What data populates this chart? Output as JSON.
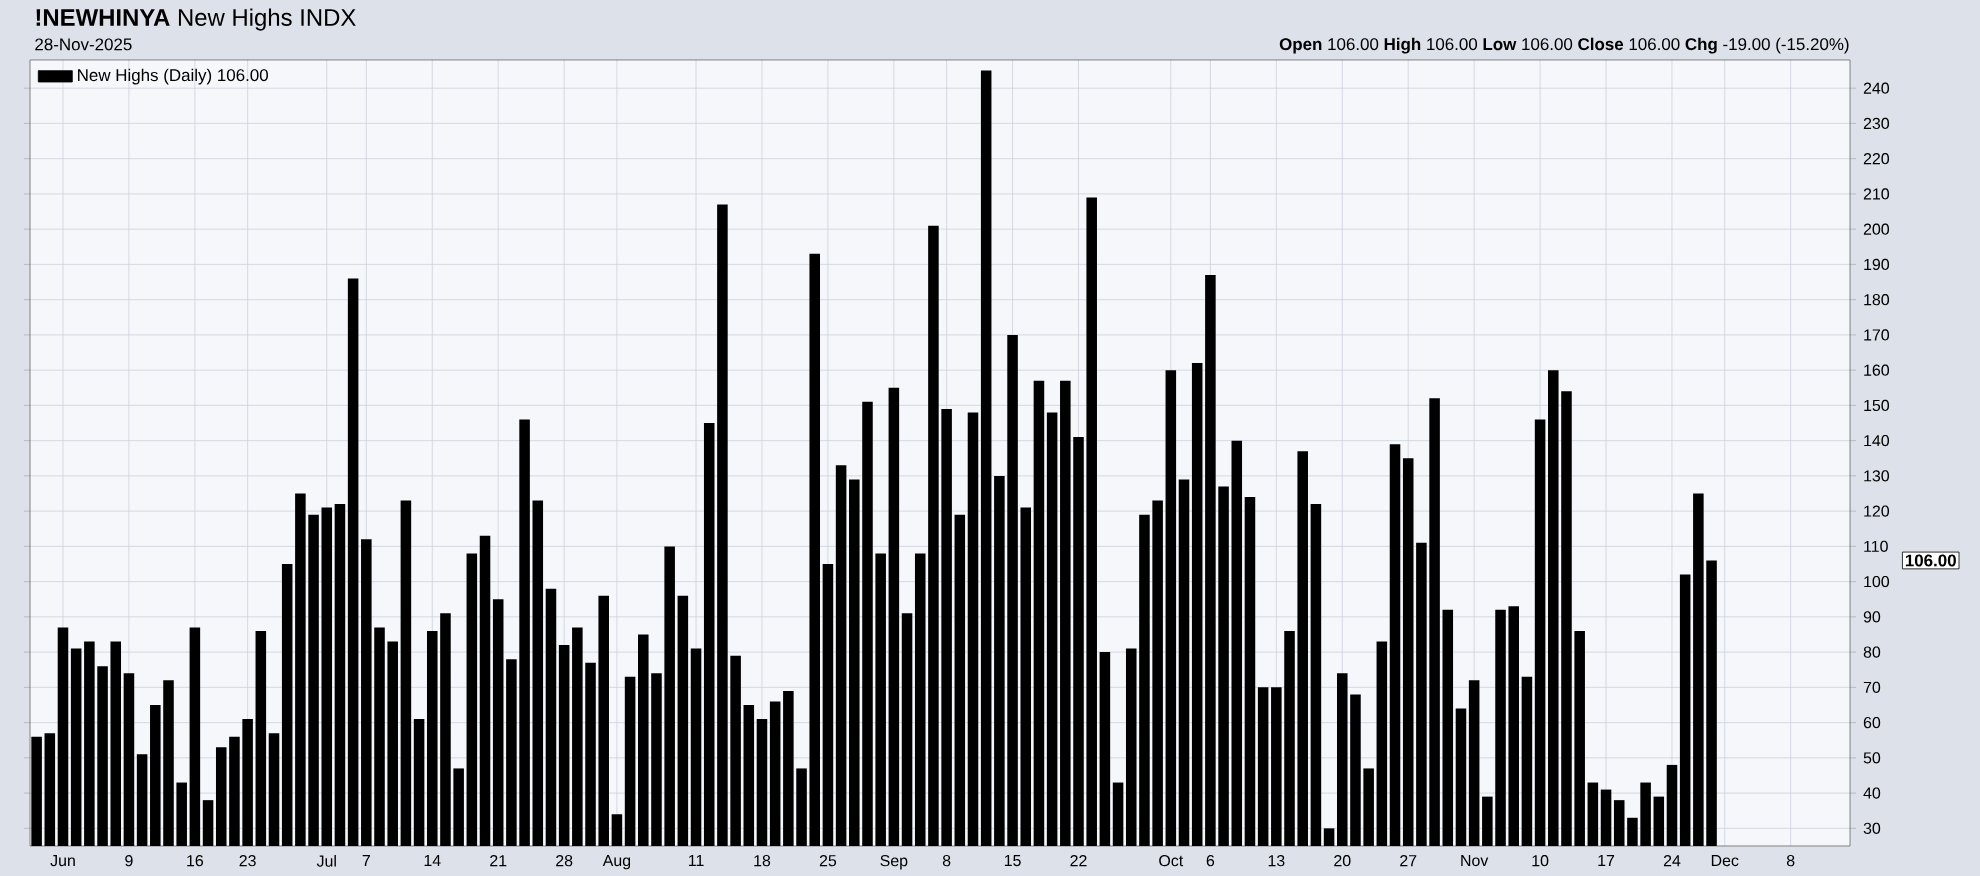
{
  "chart_data": {
    "type": "bar",
    "title": "**!NEWHINYA** New Highs INDX",
    "subtitle": "28-Nov-2025",
    "categories": [
      null,
      null,
      "Jun",
      null,
      null,
      null,
      null,
      "9",
      null,
      null,
      null,
      null,
      "16",
      null,
      null,
      null,
      "23",
      null,
      null,
      null,
      null,
      null,
      "Jul",
      null,
      null,
      "7",
      null,
      null,
      null,
      null,
      "14",
      null,
      null,
      null,
      null,
      "21",
      null,
      null,
      null,
      null,
      "28",
      null,
      null,
      null,
      "Aug",
      null,
      null,
      null,
      null,
      null,
      "11",
      null,
      null,
      null,
      null,
      "18",
      null,
      null,
      null,
      null,
      "25",
      null,
      null,
      null,
      null,
      "Sep",
      null,
      null,
      null,
      "8",
      null,
      null,
      null,
      null,
      "15",
      null,
      null,
      null,
      null,
      "22",
      null,
      null,
      null,
      null,
      null,
      null,
      "Oct",
      null,
      null,
      "6",
      null,
      null,
      null,
      null,
      "13",
      null,
      null,
      null,
      null,
      "20",
      null,
      null,
      null,
      null,
      "27",
      null,
      null,
      null,
      null,
      "Nov",
      null,
      null,
      null,
      null,
      "10",
      null,
      null,
      null,
      null,
      "17",
      null,
      null,
      null,
      null,
      "24",
      null,
      null,
      null,
      "Dec",
      null,
      null,
      null,
      null,
      "8",
      null,
      null,
      null,
      null
    ],
    "series": [
      {
        "name": "New Highs (Daily) 106.00",
        "color": "#000000",
        "values": [
          56,
          57,
          87,
          81,
          83,
          76,
          83,
          74,
          51,
          65,
          72,
          43,
          87,
          38,
          53,
          56,
          61,
          86,
          57,
          105,
          125,
          119,
          121,
          122,
          186,
          112,
          87,
          83,
          123,
          61,
          86,
          91,
          47,
          108,
          113,
          95,
          78,
          146,
          123,
          98,
          82,
          87,
          77,
          96,
          34,
          73,
          85,
          74,
          110,
          96,
          81,
          145,
          207,
          79,
          65,
          61,
          66,
          69,
          47,
          193,
          105,
          133,
          129,
          151,
          108,
          155,
          91,
          108,
          201,
          149,
          119,
          148,
          245,
          130,
          170,
          121,
          157,
          148,
          157,
          141,
          209,
          80,
          43,
          81,
          119,
          123,
          160,
          129,
          162,
          187,
          127,
          140,
          124,
          70,
          70,
          86,
          137,
          122,
          30,
          74,
          68,
          47,
          83,
          139,
          135,
          111,
          152,
          92,
          64,
          72,
          39,
          92,
          93,
          73,
          146,
          160,
          154,
          86,
          43,
          41,
          38,
          33,
          43,
          39,
          48,
          102,
          125,
          106,
          null,
          null,
          null,
          null,
          null,
          null,
          null,
          null,
          null,
          null
        ]
      }
    ],
    "ylim": [
      25,
      248
    ],
    "yticks": [
      30,
      40,
      50,
      60,
      70,
      80,
      90,
      100,
      110,
      120,
      130,
      140,
      150,
      160,
      170,
      180,
      190,
      200,
      210,
      220,
      230,
      240
    ],
    "grid": true,
    "legend": "top left",
    "annotations": [
      "**Open** 106.00 **High** 106.00 **Low** 106.00 **Close** 106.00 **Chg** -19.00 (-15.20%)",
      "106.00"
    ]
  }
}
